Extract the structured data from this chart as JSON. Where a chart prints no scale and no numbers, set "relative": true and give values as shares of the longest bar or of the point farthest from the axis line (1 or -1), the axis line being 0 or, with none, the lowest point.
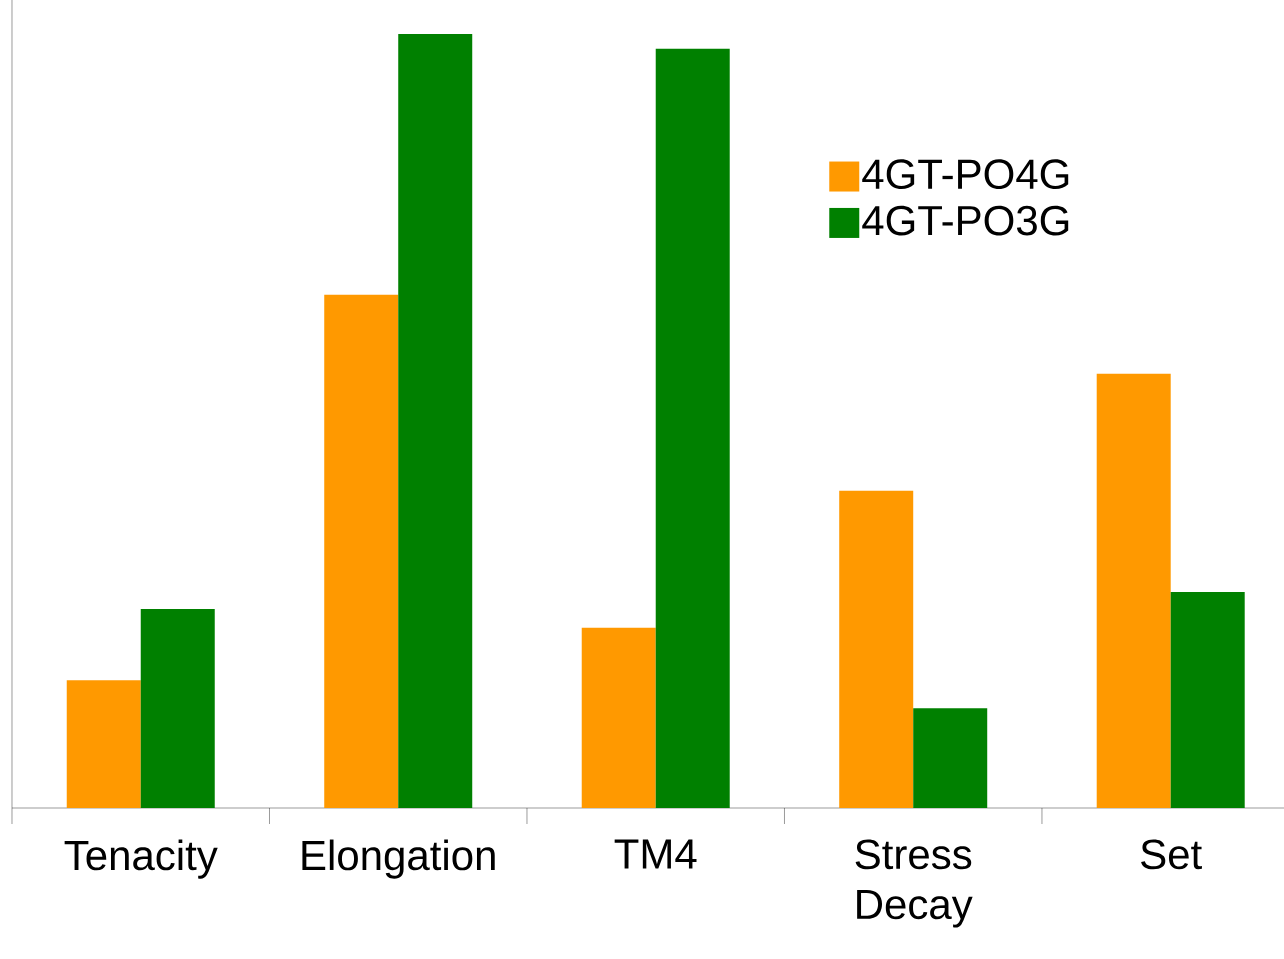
{
  "chart_data": {
    "type": "bar",
    "relative": true,
    "categories": [
      "Tenacity",
      "Elongation",
      "TM4",
      "Stress Decay",
      "Set"
    ],
    "series": [
      {
        "name": "4GT-PO4G",
        "color": "#ff9900",
        "values": [
          0.165,
          0.663,
          0.233,
          0.41,
          0.561
        ]
      },
      {
        "name": "4GT-PO3G",
        "color": "#008000",
        "values": [
          0.257,
          1,
          0.981,
          0.129,
          0.279
        ]
      }
    ],
    "legend": "top right"
  }
}
